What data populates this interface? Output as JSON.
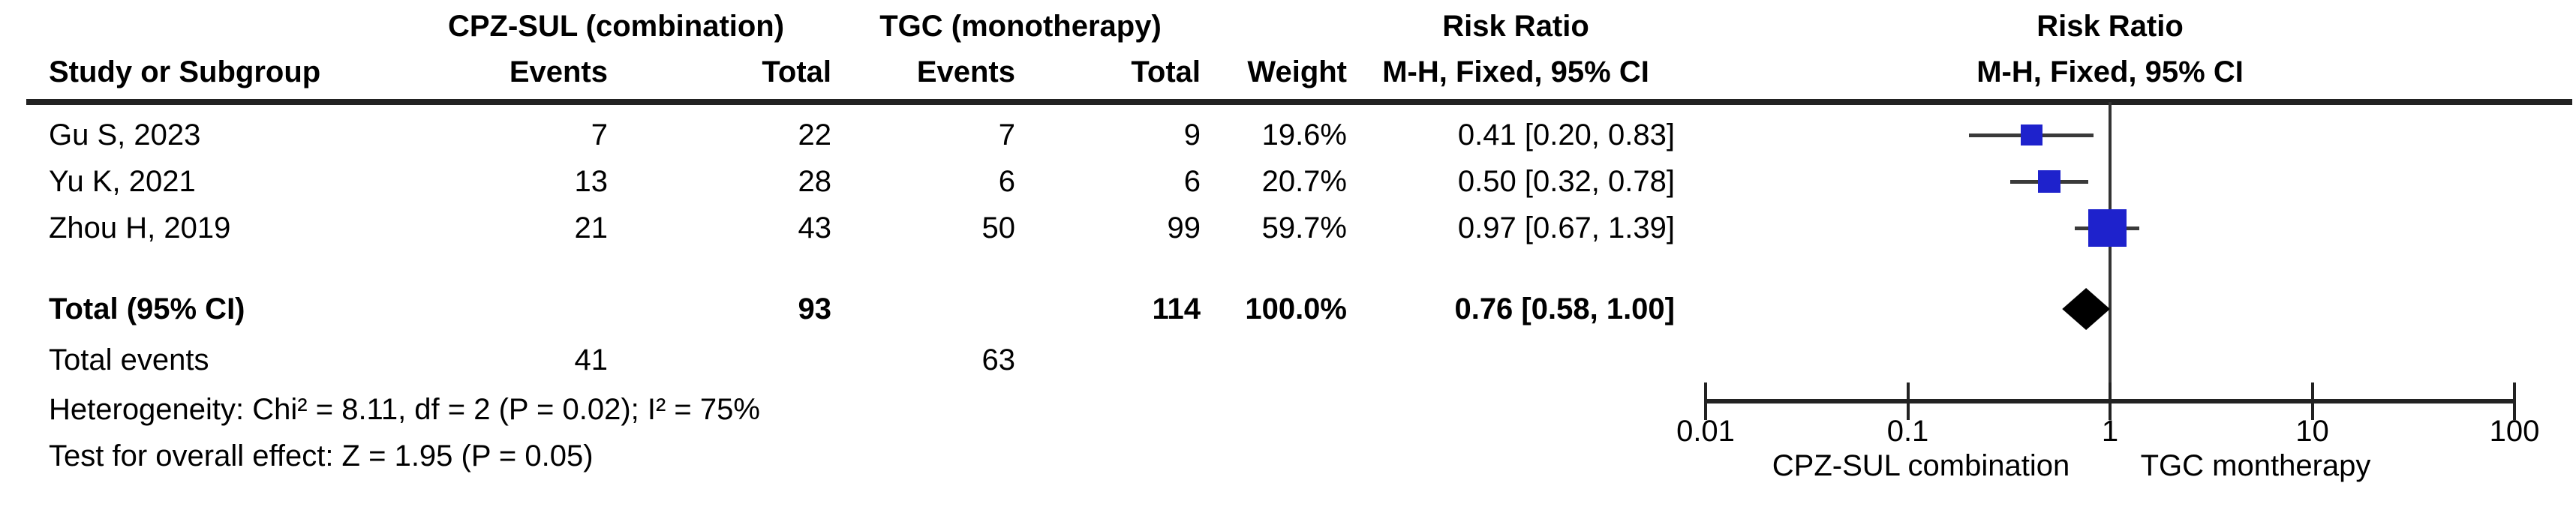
{
  "table": {
    "group1_header": "CPZ-SUL (combination)",
    "group2_header": "TGC (monotherapy)",
    "risk_ratio_header": "Risk Ratio",
    "method_header": "M-H, Fixed, 95% CI",
    "col_study": "Study or Subgroup",
    "col_events": "Events",
    "col_total": "Total",
    "col_weight": "Weight",
    "rows": [
      {
        "study": "Gu S, 2023",
        "e1": "7",
        "t1": "22",
        "e2": "7",
        "t2": "9",
        "weight": "19.6%",
        "ci": "0.41 [0.20, 0.83]"
      },
      {
        "study": "Yu K, 2021",
        "e1": "13",
        "t1": "28",
        "e2": "6",
        "t2": "6",
        "weight": "20.7%",
        "ci": "0.50 [0.32, 0.78]"
      },
      {
        "study": "Zhou H, 2019",
        "e1": "21",
        "t1": "43",
        "e2": "50",
        "t2": "99",
        "weight": "59.7%",
        "ci": "0.97 [0.67, 1.39]"
      }
    ],
    "total_label": "Total (95% CI)",
    "total_t1": "93",
    "total_t2": "114",
    "total_weight": "100.0%",
    "total_ci": "0.76 [0.58, 1.00]",
    "total_events_label": "Total events",
    "total_e1": "41",
    "total_e2": "63",
    "heterogeneity": "Heterogeneity: Chi² = 8.11, df = 2 (P = 0.02); I² = 75%",
    "overall_effect": "Test for overall effect: Z = 1.95 (P = 0.05)"
  },
  "chart_data": {
    "type": "forest",
    "effect_measure": "Risk Ratio, M-H, Fixed, 95% CI",
    "x_scale": "log10",
    "xlim": [
      0.01,
      100
    ],
    "axis_ticks": [
      0.01,
      0.1,
      1,
      10,
      100
    ],
    "axis_tick_labels": [
      "0.01",
      "0.1",
      "1",
      "10",
      "100"
    ],
    "left_axis_caption": "CPZ-SUL combination",
    "right_axis_caption": "TGC montherapy",
    "studies": [
      {
        "label": "Gu S, 2023",
        "rr": 0.41,
        "ci_low": 0.2,
        "ci_high": 0.83,
        "weight_pct": 19.6
      },
      {
        "label": "Yu K, 2021",
        "rr": 0.5,
        "ci_low": 0.32,
        "ci_high": 0.78,
        "weight_pct": 20.7
      },
      {
        "label": "Zhou H, 2019",
        "rr": 0.97,
        "ci_low": 0.67,
        "ci_high": 1.39,
        "weight_pct": 59.7
      }
    ],
    "total": {
      "rr": 0.76,
      "ci_low": 0.58,
      "ci_high": 1.0
    },
    "marker_color": "#1e22cc",
    "diamond_color": "#000000"
  }
}
